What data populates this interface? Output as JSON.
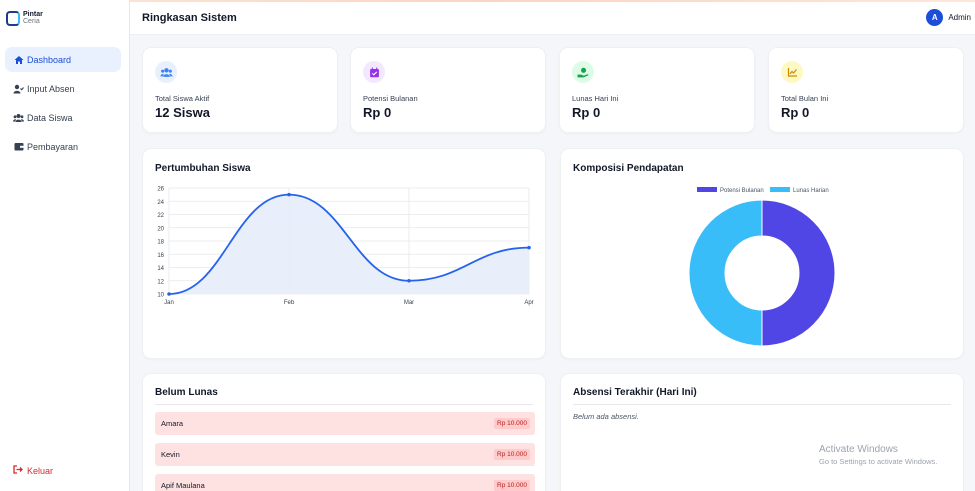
{
  "app": {
    "logo_line1": "Pintar",
    "logo_line2": "Ceria"
  },
  "sidebar": {
    "items": [
      {
        "label": "Dashboard",
        "icon": "home-icon",
        "active": true
      },
      {
        "label": "Input Absen",
        "icon": "user-check-icon",
        "active": false
      },
      {
        "label": "Data Siswa",
        "icon": "users-icon",
        "active": false
      },
      {
        "label": "Pembayaran",
        "icon": "wallet-icon",
        "active": false
      }
    ],
    "logout_label": "Keluar"
  },
  "header": {
    "title": "Ringkasan Sistem",
    "user_initial": "A",
    "user_name": "Admin"
  },
  "stats": [
    {
      "label": "Total Siswa Aktif",
      "value": "12 Siswa",
      "icon": "users-icon",
      "color": "#3b82f6"
    },
    {
      "label": "Potensi Bulanan",
      "value": "Rp 0",
      "icon": "calendar-check-icon",
      "color": "#9333ea"
    },
    {
      "label": "Lunas Hari Ini",
      "value": "Rp 0",
      "icon": "hand-coin-icon",
      "color": "#16a34a"
    },
    {
      "label": "Total Bulan Ini",
      "value": "Rp 0",
      "icon": "chart-line-icon",
      "color": "#ca8a04"
    }
  ],
  "growth_card": {
    "title": "Pertumbuhan Siswa"
  },
  "income_card": {
    "title": "Komposisi Pendapatan"
  },
  "chart_data": [
    {
      "type": "line",
      "categories": [
        "Jan",
        "Feb",
        "Mar",
        "Apr"
      ],
      "series": [
        {
          "values": [
            10,
            25,
            12,
            17
          ]
        }
      ],
      "ylim": [
        10,
        26
      ],
      "yticks": [
        10,
        12,
        14,
        16,
        18,
        20,
        22,
        24,
        26
      ],
      "grid": true,
      "fill": true,
      "smooth": true,
      "color": "#2563eb",
      "fill_color": "#e7ecfb"
    },
    {
      "type": "pie",
      "donut": true,
      "labels": [
        "Potensi Bulanan",
        "Lunas Harian"
      ],
      "values": [
        1,
        1
      ],
      "colors": [
        "#4f46e5",
        "#38bdf8"
      ],
      "legend": "top"
    }
  ],
  "unpaid": {
    "title": "Belum Lunas",
    "items": [
      {
        "name": "Amara",
        "amount": "Rp 10.000"
      },
      {
        "name": "Kevin",
        "amount": "Rp 10.000"
      },
      {
        "name": "Apif Maulana",
        "amount": "Rp 10.000"
      }
    ]
  },
  "attendance": {
    "title": "Absensi Terakhir (Hari Ini)",
    "empty_text": "Belum ada absensi."
  },
  "watermark": {
    "line1": "Activate Windows",
    "line2": "Go to Settings to activate Windows."
  }
}
